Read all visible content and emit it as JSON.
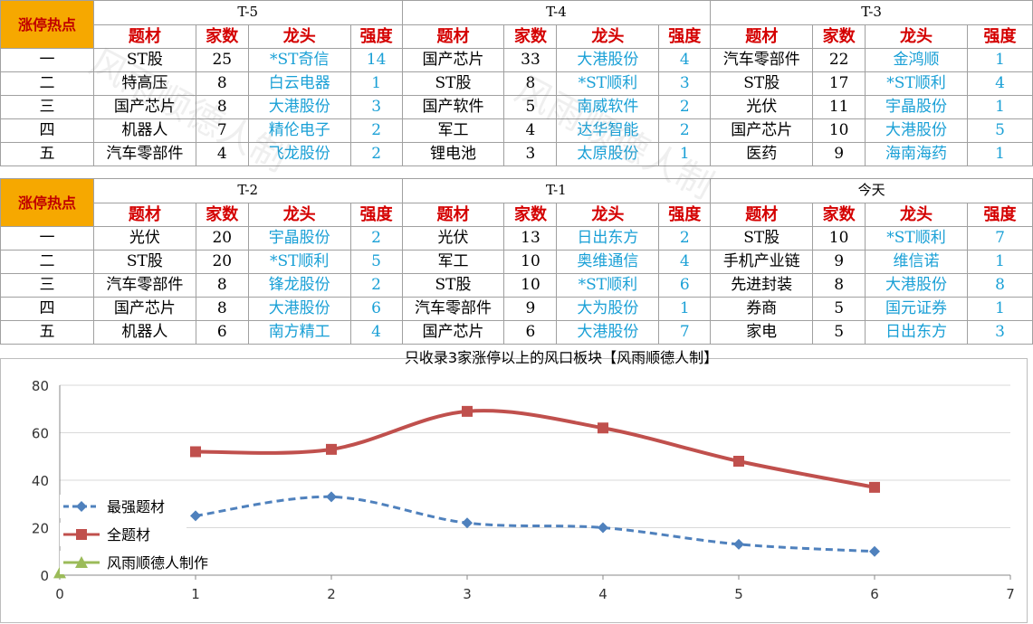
{
  "corner_label": "涨停热点",
  "col_headers": [
    "题材",
    "家数",
    "龙头",
    "强度"
  ],
  "ranks": [
    "一",
    "二",
    "三",
    "四",
    "五"
  ],
  "tables": [
    {
      "periods": [
        {
          "label": "T-5",
          "rows": [
            [
              "ST股",
              "25",
              "*ST奇信",
              "14"
            ],
            [
              "特高压",
              "8",
              "白云电器",
              "1"
            ],
            [
              "国产芯片",
              "8",
              "大港股份",
              "3"
            ],
            [
              "机器人",
              "7",
              "精伦电子",
              "2"
            ],
            [
              "汽车零部件",
              "4",
              "飞龙股份",
              "2"
            ]
          ]
        },
        {
          "label": "T-4",
          "rows": [
            [
              "国产芯片",
              "33",
              "大港股份",
              "4"
            ],
            [
              "ST股",
              "8",
              "*ST顺利",
              "3"
            ],
            [
              "国产软件",
              "5",
              "南威软件",
              "2"
            ],
            [
              "军工",
              "4",
              "达华智能",
              "2"
            ],
            [
              "锂电池",
              "3",
              "太原股份",
              "1"
            ]
          ]
        },
        {
          "label": "T-3",
          "rows": [
            [
              "汽车零部件",
              "22",
              "金鸿顺",
              "1"
            ],
            [
              "ST股",
              "17",
              "*ST顺利",
              "4"
            ],
            [
              "光伏",
              "11",
              "宇晶股份",
              "1"
            ],
            [
              "国产芯片",
              "10",
              "大港股份",
              "5"
            ],
            [
              "医药",
              "9",
              "海南海药",
              "1"
            ]
          ]
        }
      ]
    },
    {
      "periods": [
        {
          "label": "T-2",
          "rows": [
            [
              "光伏",
              "20",
              "宇晶股份",
              "2"
            ],
            [
              "ST股",
              "20",
              "*ST顺利",
              "5"
            ],
            [
              "汽车零部件",
              "8",
              "锋龙股份",
              "2"
            ],
            [
              "国产芯片",
              "8",
              "大港股份",
              "6"
            ],
            [
              "机器人",
              "6",
              "南方精工",
              "4"
            ]
          ]
        },
        {
          "label": "T-1",
          "rows": [
            [
              "光伏",
              "13",
              "日出东方",
              "2"
            ],
            [
              "军工",
              "10",
              "奥维通信",
              "4"
            ],
            [
              "ST股",
              "10",
              "*ST顺利",
              "6"
            ],
            [
              "汽车零部件",
              "9",
              "大为股份",
              "1"
            ],
            [
              "国产芯片",
              "6",
              "大港股份",
              "7"
            ]
          ]
        },
        {
          "label": "今天",
          "rows": [
            [
              "ST股",
              "10",
              "*ST顺利",
              "7"
            ],
            [
              "手机产业链",
              "9",
              "维信诺",
              "1"
            ],
            [
              "先进封装",
              "8",
              "大港股份",
              "8"
            ],
            [
              "券商",
              "5",
              "国元证券",
              "1"
            ],
            [
              "家电",
              "5",
              "日出东方",
              "3"
            ]
          ]
        }
      ]
    }
  ],
  "chart_data": {
    "type": "line",
    "title": "只收录3家涨停以上的风口板块【风雨顺德人制】",
    "x_ticks": [
      "0",
      "1",
      "2",
      "3",
      "4",
      "5",
      "6",
      "7"
    ],
    "y_ticks": [
      "0",
      "20",
      "40",
      "60",
      "80"
    ],
    "xlim": [
      0,
      7
    ],
    "ylim": [
      0,
      80
    ],
    "grid": true,
    "legend_position": "left-bottom",
    "series": [
      {
        "name": "最强题材",
        "x": [
          1,
          2,
          3,
          4,
          5,
          6
        ],
        "y": [
          25,
          33,
          22,
          20,
          13,
          10
        ],
        "color": "#4f81bd",
        "style": "dashed",
        "marker": "diamond"
      },
      {
        "name": "全题材",
        "x": [
          1,
          2,
          3,
          4,
          5,
          6
        ],
        "y": [
          52,
          53,
          69,
          62,
          48,
          37
        ],
        "color": "#c0504d",
        "style": "solid",
        "marker": "square"
      },
      {
        "name": "风雨顺德人制作",
        "x": [
          0
        ],
        "y": [
          1
        ],
        "color": "#9bbb59",
        "style": "solid",
        "marker": "triangle"
      }
    ]
  },
  "colors": {
    "corner_bg": "#f6a800",
    "header_red": "#d40000",
    "leader_blue": "#1aa0d6"
  }
}
